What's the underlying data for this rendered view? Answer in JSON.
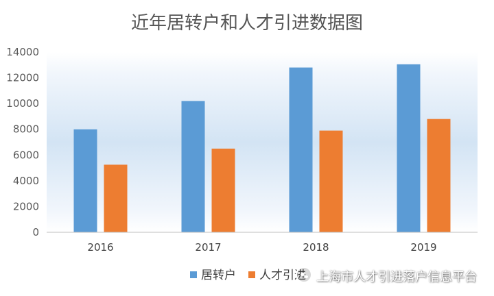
{
  "chart_data": {
    "type": "bar",
    "title": "近年居转户和人才引进数据图",
    "categories": [
      "2016",
      "2017",
      "2018",
      "2019"
    ],
    "series": [
      {
        "name": "居转户",
        "color": "#5b9bd5",
        "values": [
          8000,
          10200,
          12800,
          13050
        ]
      },
      {
        "name": "人才引进",
        "color": "#ed7d31",
        "values": [
          5250,
          6500,
          7900,
          8800
        ]
      }
    ],
    "ylim": [
      0,
      14000
    ],
    "yticks": [
      "0",
      "2000",
      "4000",
      "6000",
      "8000",
      "10000",
      "12000",
      "14000"
    ],
    "xlabel": "",
    "ylabel": "",
    "grid": false,
    "legend": "bottom"
  },
  "watermark": {
    "text": "上海市人才引进落户信息平台",
    "icon": "wechat-icon"
  }
}
